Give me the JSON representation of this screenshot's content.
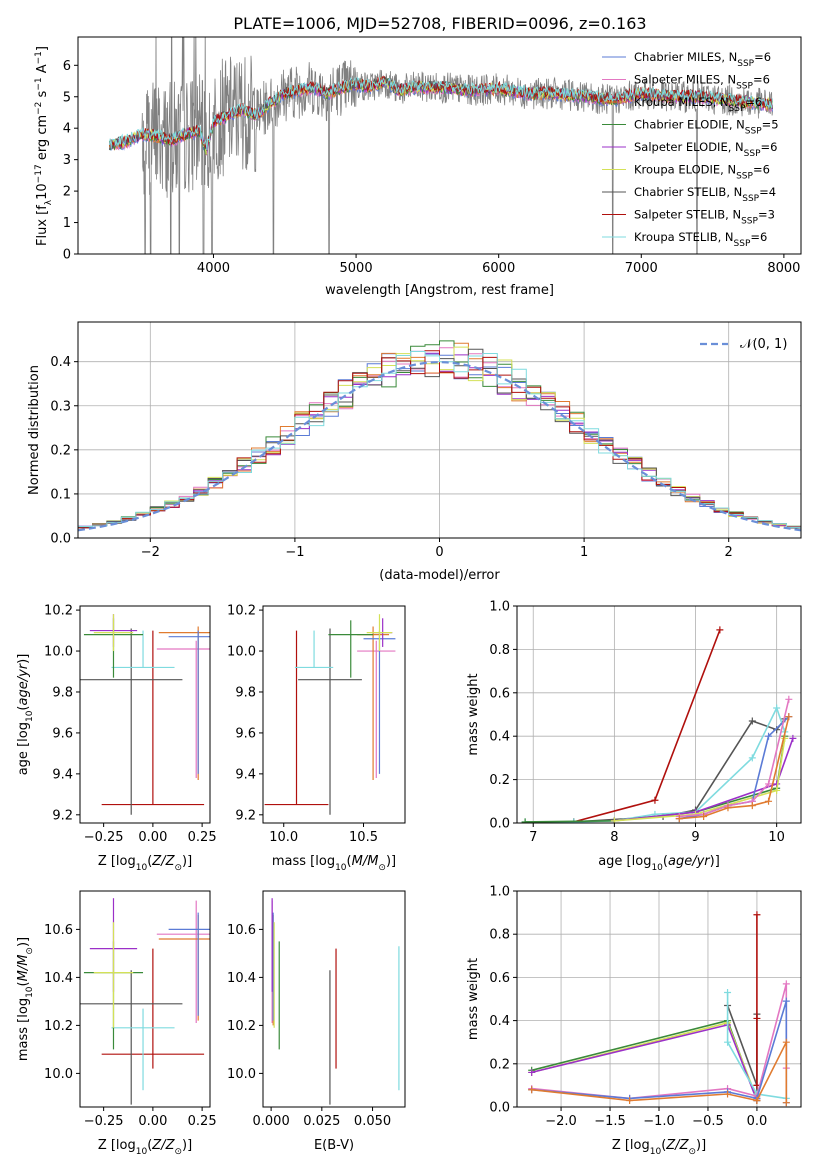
{
  "title": "PLATE=1006, MJD=52708, FIBERID=0096, z=0.163",
  "colors": {
    "Chabrier MILES": "#5b7bd6",
    "Salpeter MILES": "#e377c2",
    "Kroupa MILES": "#e07b30",
    "Chabrier ELODIE": "#3a8a3a",
    "Salpeter ELODIE": "#9b30c8",
    "Kroupa ELODIE": "#d4e157",
    "Chabrier STELIB": "#555555",
    "Salpeter STELIB": "#b0100d",
    "Kroupa STELIB": "#7fdbdf",
    "data": "#808080",
    "normal": "#6a8fd8"
  },
  "chart_data": [
    {
      "id": "spectrum",
      "type": "line",
      "xlabel": "wavelength [Angstrom, rest frame]",
      "ylabel_parts": [
        "Flux [f",
        "λ",
        "10",
        "−17",
        " erg cm",
        "−2",
        " s",
        "−1",
        " A",
        "−1",
        "]"
      ],
      "xlim": [
        3050,
        8120
      ],
      "ylim": [
        0,
        6.9
      ],
      "xticks": [
        4000,
        5000,
        6000,
        7000,
        8000
      ],
      "yticks": [
        0,
        1,
        2,
        3,
        4,
        5,
        6
      ],
      "legend": [
        {
          "label": "Chabrier MILES, N",
          "sub": "SSP",
          "suffix": "=6",
          "color_key": "Chabrier MILES"
        },
        {
          "label": "Salpeter MILES, N",
          "sub": "SSP",
          "suffix": "=6",
          "color_key": "Salpeter MILES"
        },
        {
          "label": "Kroupa MILES, N",
          "sub": "SSP",
          "suffix": "=6",
          "color_key": "Kroupa MILES"
        },
        {
          "label": "Chabrier ELODIE, N",
          "sub": "SSP",
          "suffix": "=5",
          "color_key": "Chabrier ELODIE"
        },
        {
          "label": "Salpeter ELODIE, N",
          "sub": "SSP",
          "suffix": "=6",
          "color_key": "Salpeter ELODIE"
        },
        {
          "label": "Kroupa ELODIE, N",
          "sub": "SSP",
          "suffix": "=6",
          "color_key": "Kroupa ELODIE"
        },
        {
          "label": "Chabrier STELIB, N",
          "sub": "SSP",
          "suffix": "=4",
          "color_key": "Chabrier STELIB"
        },
        {
          "label": "Salpeter STELIB, N",
          "sub": "SSP",
          "suffix": "=3",
          "color_key": "Salpeter STELIB"
        },
        {
          "label": "Kroupa STELIB, N",
          "sub": "SSP",
          "suffix": "=6",
          "color_key": "Kroupa STELIB"
        }
      ],
      "legend_position": "upper right",
      "model_continuum": {
        "x": [
          3270,
          3400,
          3500,
          3600,
          3700,
          3800,
          3900,
          3950,
          4000,
          4100,
          4200,
          4300,
          4400,
          4500,
          4600,
          4700,
          4800,
          4900,
          5000,
          5100,
          5200,
          5300,
          5400,
          5600,
          5800,
          6000,
          6200,
          6400,
          6600,
          6800,
          7000,
          7200,
          7400,
          7600,
          7800,
          7920
        ],
        "y": [
          3.45,
          3.6,
          3.8,
          3.75,
          3.6,
          3.8,
          3.9,
          3.3,
          4.2,
          4.4,
          4.6,
          4.4,
          4.8,
          5.1,
          5.2,
          5.3,
          5.1,
          5.3,
          5.4,
          5.3,
          5.5,
          5.2,
          5.3,
          5.3,
          5.2,
          5.25,
          5.1,
          5.1,
          5.0,
          4.9,
          5.1,
          5.0,
          5.0,
          4.9,
          4.8,
          4.75
        ]
      },
      "data_noise_range": [
        3500,
        7920
      ],
      "data_drops": [
        3520,
        3560,
        3700,
        3760,
        3930,
        3990,
        4420,
        4810,
        6800,
        7390
      ]
    },
    {
      "id": "residual-hist",
      "type": "histogram",
      "xlabel": "(data-model)/error",
      "ylabel": "Normed distribution",
      "xlim": [
        -2.5,
        2.5
      ],
      "ylim": [
        0,
        0.49
      ],
      "xticks": [
        -2,
        -1,
        0,
        1,
        2
      ],
      "ytick_labels": [
        "0.0",
        "0.1",
        "0.2",
        "0.3",
        "0.4"
      ],
      "yticks": [
        0,
        0.1,
        0.2,
        0.3,
        0.4
      ],
      "grid": true,
      "legend": "𝒩(0, 1)",
      "legend_position": "upper right",
      "bin_width": 0.1
    },
    {
      "id": "age-vs-Z",
      "type": "errorbar",
      "xlabel": "Z [log10(Z/Z⊙)]",
      "ylabel": "age  [log10(age/yr)]",
      "xlim": [
        -0.37,
        0.29
      ],
      "ylim": [
        9.16,
        10.22
      ],
      "xticks": [
        -0.25,
        0.0,
        0.25
      ],
      "xtick_labels": [
        "−0.25",
        "0.00",
        "0.25"
      ],
      "yticks": [
        9.2,
        9.4,
        9.6,
        9.8,
        10.0,
        10.2
      ],
      "ytick_labels": [
        "9.2",
        "9.4",
        "9.6",
        "9.8",
        "10.0",
        "10.2"
      ],
      "points": [
        {
          "key": "Salpeter STELIB",
          "x": 0.0,
          "xerr": 0.26,
          "y": 9.25,
          "ylo": 9.25,
          "yhi": 10.1
        },
        {
          "key": "Chabrier STELIB",
          "x": -0.11,
          "xerr": 0.26,
          "y": 9.86,
          "ylo": 9.2,
          "yhi": 10.11
        },
        {
          "key": "Kroupa STELIB",
          "x": -0.05,
          "xerr": 0.16,
          "y": 9.92,
          "ylo": 9.92,
          "yhi": 10.1
        },
        {
          "key": "Salpeter MILES",
          "x": 0.22,
          "xerr": 0.2,
          "y": 10.01,
          "ylo": 9.38,
          "yhi": 10.05
        },
        {
          "key": "Kroupa MILES",
          "x": 0.23,
          "xerr": 0.2,
          "y": 10.09,
          "ylo": 9.37,
          "yhi": 10.12
        },
        {
          "key": "Chabrier MILES",
          "x": 0.23,
          "xerr": 0.15,
          "y": 10.07,
          "ylo": 9.4,
          "yhi": 10.1
        },
        {
          "key": "Chabrier ELODIE",
          "x": -0.2,
          "xerr": 0.15,
          "y": 10.08,
          "ylo": 9.87,
          "yhi": 10.16
        },
        {
          "key": "Salpeter ELODIE",
          "x": -0.2,
          "xerr": 0.12,
          "y": 10.1,
          "ylo": 10.02,
          "yhi": 10.18
        },
        {
          "key": "Kroupa ELODIE",
          "x": -0.2,
          "xerr": 0.1,
          "y": 10.09,
          "ylo": 10.0,
          "yhi": 10.18
        }
      ]
    },
    {
      "id": "age-vs-mass",
      "type": "errorbar",
      "xlabel": "mass [log10(M/M⊙)]",
      "xlim": [
        9.87,
        10.76
      ],
      "ylim": [
        9.16,
        10.22
      ],
      "xticks": [
        10.0,
        10.5
      ],
      "xtick_labels": [
        "10.0",
        "10.5"
      ],
      "yticks": [
        9.2,
        9.4,
        9.6,
        9.8,
        10.0,
        10.2
      ],
      "ytick_labels": [
        "9.2",
        "9.4",
        "9.6",
        "9.8",
        "10.0",
        "10.2"
      ],
      "points": [
        {
          "key": "Salpeter STELIB",
          "x": 10.08,
          "xerr": 0.2,
          "y": 9.25,
          "ylo": 9.25,
          "yhi": 10.1
        },
        {
          "key": "Chabrier STELIB",
          "x": 10.29,
          "xerr": 0.2,
          "y": 9.86,
          "ylo": 9.2,
          "yhi": 10.11
        },
        {
          "key": "Kroupa STELIB",
          "x": 10.19,
          "xerr": 0.12,
          "y": 9.92,
          "ylo": 9.92,
          "yhi": 10.1
        },
        {
          "key": "Salpeter MILES",
          "x": 10.58,
          "xerr": 0.12,
          "y": 10.0,
          "ylo": 9.38,
          "yhi": 10.05
        },
        {
          "key": "Kroupa MILES",
          "x": 10.56,
          "xerr": 0.1,
          "y": 10.08,
          "ylo": 9.37,
          "yhi": 10.12
        },
        {
          "key": "Chabrier MILES",
          "x": 10.6,
          "xerr": 0.1,
          "y": 10.06,
          "ylo": 9.4,
          "yhi": 10.1
        },
        {
          "key": "Chabrier ELODIE",
          "x": 10.42,
          "xerr": 0.14,
          "y": 10.08,
          "ylo": 9.87,
          "yhi": 10.15
        },
        {
          "key": "Salpeter ELODIE",
          "x": 10.62,
          "xerr": 0.06,
          "y": 10.09,
          "ylo": 10.02,
          "yhi": 10.16
        },
        {
          "key": "Kroupa ELODIE",
          "x": 10.6,
          "xerr": 0.08,
          "y": 10.09,
          "ylo": 10.0,
          "yhi": 10.18
        }
      ]
    },
    {
      "id": "massweight-vs-age",
      "type": "line",
      "xlabel": "age  [log10(age/yr)]",
      "ylabel": "mass weight",
      "xlim": [
        6.8,
        10.3
      ],
      "ylim": [
        0,
        1.0
      ],
      "xticks": [
        7,
        8,
        9,
        10
      ],
      "yticks": [
        0,
        0.2,
        0.4,
        0.6,
        0.8,
        1.0
      ],
      "ytick_labels": [
        "0.0",
        "0.2",
        "0.4",
        "0.6",
        "0.8",
        "1.0"
      ],
      "grid": true,
      "series": [
        {
          "key": "Salpeter STELIB",
          "x": [
            7.5,
            8.5,
            9.3
          ],
          "y": [
            0.005,
            0.105,
            0.89
          ]
        },
        {
          "key": "Chabrier STELIB",
          "x": [
            7.5,
            8.6,
            9.0,
            9.7,
            10.0,
            10.1
          ],
          "y": [
            0.005,
            0.03,
            0.06,
            0.47,
            0.43,
            0.48
          ]
        },
        {
          "key": "Kroupa STELIB",
          "x": [
            6.9,
            7.5,
            8.0,
            8.5,
            9.0,
            9.7,
            10.0,
            10.1
          ],
          "y": [
            0.005,
            0.005,
            0.01,
            0.04,
            0.05,
            0.3,
            0.53,
            0.42
          ]
        },
        {
          "key": "Chabrier ELODIE",
          "x": [
            6.9,
            8.0,
            9.0,
            10.0,
            10.1
          ],
          "y": [
            0.005,
            0.01,
            0.05,
            0.16,
            0.4
          ]
        },
        {
          "key": "Salpeter ELODIE",
          "x": [
            8.0,
            9.0,
            10.0,
            10.2
          ],
          "y": [
            0.01,
            0.05,
            0.18,
            0.39
          ]
        },
        {
          "key": "Kroupa ELODIE",
          "x": [
            8.0,
            9.0,
            10.0,
            10.1
          ],
          "y": [
            0.01,
            0.04,
            0.15,
            0.39
          ]
        },
        {
          "key": "Chabrier MILES",
          "x": [
            8.8,
            9.1,
            9.4,
            9.7,
            9.9,
            10.15
          ],
          "y": [
            0.02,
            0.04,
            0.08,
            0.1,
            0.4,
            0.49
          ]
        },
        {
          "key": "Salpeter MILES",
          "x": [
            8.8,
            9.1,
            9.4,
            9.7,
            9.9,
            10.15
          ],
          "y": [
            0.03,
            0.04,
            0.08,
            0.1,
            0.18,
            0.57
          ]
        },
        {
          "key": "Kroupa MILES",
          "x": [
            8.8,
            9.1,
            9.4,
            9.7,
            9.9,
            10.15
          ],
          "y": [
            0.02,
            0.03,
            0.07,
            0.08,
            0.1,
            0.49
          ]
        }
      ]
    },
    {
      "id": "mass-vs-Z",
      "type": "errorbar",
      "xlabel": "Z [log10(Z/Z⊙)]",
      "ylabel": "mass [log10(M/M⊙)]",
      "xlim": [
        -0.37,
        0.29
      ],
      "ylim": [
        9.86,
        10.76
      ],
      "xticks": [
        -0.25,
        0.0,
        0.25
      ],
      "xtick_labels": [
        "−0.25",
        "0.00",
        "0.25"
      ],
      "yticks": [
        10.0,
        10.2,
        10.4,
        10.6
      ],
      "ytick_labels": [
        "10.0",
        "10.2",
        "10.4",
        "10.6"
      ],
      "points": [
        {
          "key": "Salpeter STELIB",
          "x": 0.0,
          "xerr": 0.26,
          "y": 10.08,
          "ylo": 10.02,
          "yhi": 10.52
        },
        {
          "key": "Chabrier STELIB",
          "x": -0.11,
          "xerr": 0.26,
          "y": 10.29,
          "ylo": 9.87,
          "yhi": 10.43
        },
        {
          "key": "Kroupa STELIB",
          "x": -0.05,
          "xerr": 0.16,
          "y": 10.19,
          "ylo": 9.93,
          "yhi": 10.27
        },
        {
          "key": "Salpeter MILES",
          "x": 0.22,
          "xerr": 0.2,
          "y": 10.58,
          "ylo": 10.21,
          "yhi": 10.72
        },
        {
          "key": "Kroupa MILES",
          "x": 0.23,
          "xerr": 0.2,
          "y": 10.56,
          "ylo": 10.22,
          "yhi": 10.66
        },
        {
          "key": "Chabrier MILES",
          "x": 0.23,
          "xerr": 0.15,
          "y": 10.6,
          "ylo": 10.24,
          "yhi": 10.67
        },
        {
          "key": "Chabrier ELODIE",
          "x": -0.2,
          "xerr": 0.15,
          "y": 10.42,
          "ylo": 10.1,
          "yhi": 10.55
        },
        {
          "key": "Salpeter ELODIE",
          "x": -0.2,
          "xerr": 0.12,
          "y": 10.52,
          "ylo": 10.34,
          "yhi": 10.73
        },
        {
          "key": "Kroupa ELODIE",
          "x": -0.2,
          "xerr": 0.1,
          "y": 10.42,
          "ylo": 10.19,
          "yhi": 10.63
        }
      ]
    },
    {
      "id": "mass-vs-ebv",
      "type": "errorbar",
      "xlabel": "E(B-V)",
      "xlim": [
        -0.004,
        0.066
      ],
      "ylim": [
        9.86,
        10.76
      ],
      "xticks": [
        0.0,
        0.025,
        0.05
      ],
      "xtick_labels": [
        "0.000",
        "0.025",
        "0.050"
      ],
      "yticks": [
        10.0,
        10.2,
        10.4,
        10.6
      ],
      "ytick_labels": [
        "10.0",
        "10.2",
        "10.4",
        "10.6"
      ],
      "points": [
        {
          "key": "Salpeter STELIB",
          "x": 0.032,
          "y": 10.08,
          "ylo": 10.02,
          "yhi": 10.52
        },
        {
          "key": "Chabrier STELIB",
          "x": 0.029,
          "y": 10.29,
          "ylo": 9.87,
          "yhi": 10.43
        },
        {
          "key": "Kroupa STELIB",
          "x": 0.063,
          "y": 10.19,
          "ylo": 9.93,
          "yhi": 10.53
        },
        {
          "key": "Salpeter MILES",
          "x": 0.0005,
          "y": 10.55,
          "ylo": 10.21,
          "yhi": 10.72
        },
        {
          "key": "Kroupa MILES",
          "x": 0.001,
          "y": 10.55,
          "ylo": 10.2,
          "yhi": 10.66
        },
        {
          "key": "Chabrier MILES",
          "x": 0.001,
          "y": 10.55,
          "ylo": 10.22,
          "yhi": 10.67
        },
        {
          "key": "Chabrier ELODIE",
          "x": 0.004,
          "y": 10.42,
          "ylo": 10.1,
          "yhi": 10.55
        },
        {
          "key": "Salpeter ELODIE",
          "x": 0.0005,
          "y": 10.52,
          "ylo": 10.34,
          "yhi": 10.73
        },
        {
          "key": "Kroupa ELODIE",
          "x": 0.0015,
          "y": 10.42,
          "ylo": 10.19,
          "yhi": 10.63
        }
      ]
    },
    {
      "id": "massweight-vs-Z",
      "type": "line",
      "xlabel": "Z [log10(Z/Z⊙)]",
      "ylabel": "mass weight",
      "xlim": [
        -2.45,
        0.45
      ],
      "ylim": [
        0,
        1.0
      ],
      "xticks": [
        -2.0,
        -1.5,
        -1.0,
        -0.5,
        0.0
      ],
      "xtick_labels": [
        "−2.0",
        "−1.5",
        "−1.0",
        "−0.5",
        "0.0"
      ],
      "yticks": [
        0,
        0.2,
        0.4,
        0.6,
        0.8,
        1.0
      ],
      "ytick_labels": [
        "0.0",
        "0.2",
        "0.4",
        "0.6",
        "0.8",
        "1.0"
      ],
      "grid": true,
      "series": [
        {
          "key": "Chabrier ELODIE",
          "x": [
            -2.3,
            -0.3,
            0.0
          ],
          "y": [
            0.17,
            0.4,
            0.03
          ]
        },
        {
          "key": "Kroupa ELODIE",
          "x": [
            -2.3,
            -0.3,
            0.0
          ],
          "y": [
            0.16,
            0.39,
            0.04
          ]
        },
        {
          "key": "Salpeter ELODIE",
          "x": [
            -2.3,
            -0.3,
            0.0
          ],
          "y": [
            0.16,
            0.38,
            0.03
          ]
        },
        {
          "key": "Chabrier STELIB",
          "x": [
            -0.3,
            0.0,
            0.0,
            0.0
          ],
          "y": [
            0.47,
            0.1,
            0.43,
            0.03
          ]
        },
        {
          "key": "Kroupa STELIB",
          "x": [
            -0.3,
            -0.3,
            0.0,
            0.3
          ],
          "y": [
            0.53,
            0.3,
            0.06,
            0.04
          ]
        },
        {
          "key": "Salpeter STELIB",
          "x": [
            0.0,
            0.0,
            0.0
          ],
          "y": [
            0.89,
            0.1,
            0.41
          ]
        },
        {
          "key": "Salpeter MILES",
          "x": [
            -2.3,
            -1.3,
            -0.3,
            0.0,
            0.3,
            0.3
          ],
          "y": [
            0.085,
            0.04,
            0.085,
            0.05,
            0.57,
            0.18
          ]
        },
        {
          "key": "Chabrier MILES",
          "x": [
            -2.3,
            -1.3,
            -0.3,
            0.0,
            0.3,
            0.3
          ],
          "y": [
            0.08,
            0.04,
            0.07,
            0.04,
            0.49,
            0.02
          ]
        },
        {
          "key": "Kroupa MILES",
          "x": [
            -2.3,
            -1.3,
            -0.3,
            0.0,
            0.3,
            0.3
          ],
          "y": [
            0.08,
            0.03,
            0.06,
            0.03,
            0.3,
            0.02
          ]
        }
      ]
    }
  ]
}
